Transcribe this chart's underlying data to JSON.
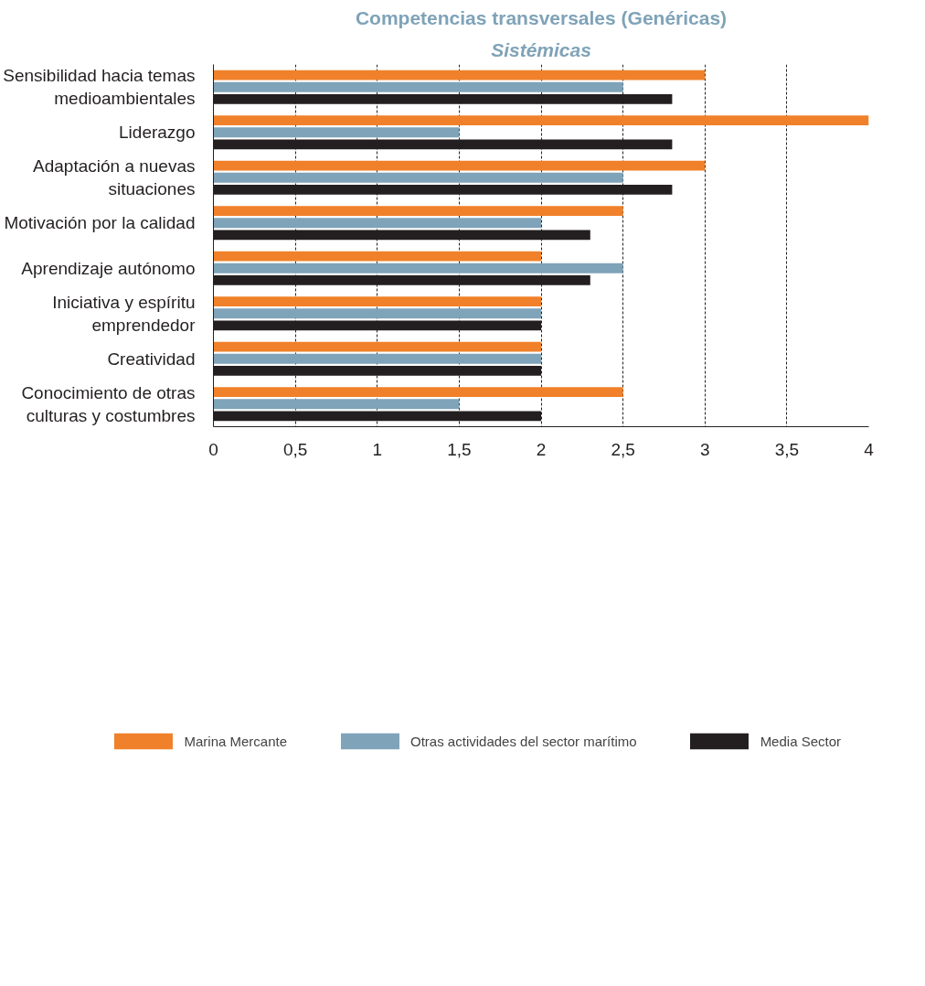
{
  "chart_data": {
    "type": "bar",
    "orientation": "horizontal",
    "title": "Competencias transversales (Genéricas)",
    "subtitle": "Sistémicas",
    "categories": [
      "Sensibilidad hacia temas medioambientales",
      "Liderazgo",
      "Adaptación a nuevas situaciones",
      "Motivación por la calidad",
      "Aprendizaje autónomo",
      "Iniciativa y espíritu emprendedor",
      "Creatividad",
      "Conocimiento de otras culturas y costumbres"
    ],
    "series": [
      {
        "name": "Marina Mercante",
        "color": "#f0812a",
        "values": [
          3.0,
          4.0,
          3.0,
          2.5,
          2.0,
          2.0,
          2.0,
          2.5
        ]
      },
      {
        "name": "Otras actividades del sector marítimo",
        "color": "#7fa3b8",
        "values": [
          2.5,
          1.5,
          2.5,
          2.0,
          2.5,
          2.0,
          2.0,
          1.5
        ]
      },
      {
        "name": "Media Sector",
        "color": "#231f20",
        "values": [
          2.8,
          2.8,
          2.8,
          2.3,
          2.3,
          2.0,
          2.0,
          2.0
        ]
      }
    ],
    "xlim": [
      0,
      4
    ],
    "xticks": [
      0,
      {
        "value": 0.5,
        "label": "0,5"
      },
      1,
      {
        "value": 1.5,
        "label": "1,5"
      },
      2,
      {
        "value": 2.5,
        "label": "2,5"
      },
      3,
      {
        "value": 3.5,
        "label": "3,5"
      },
      4
    ],
    "grid": "x",
    "legend": "bottom"
  }
}
